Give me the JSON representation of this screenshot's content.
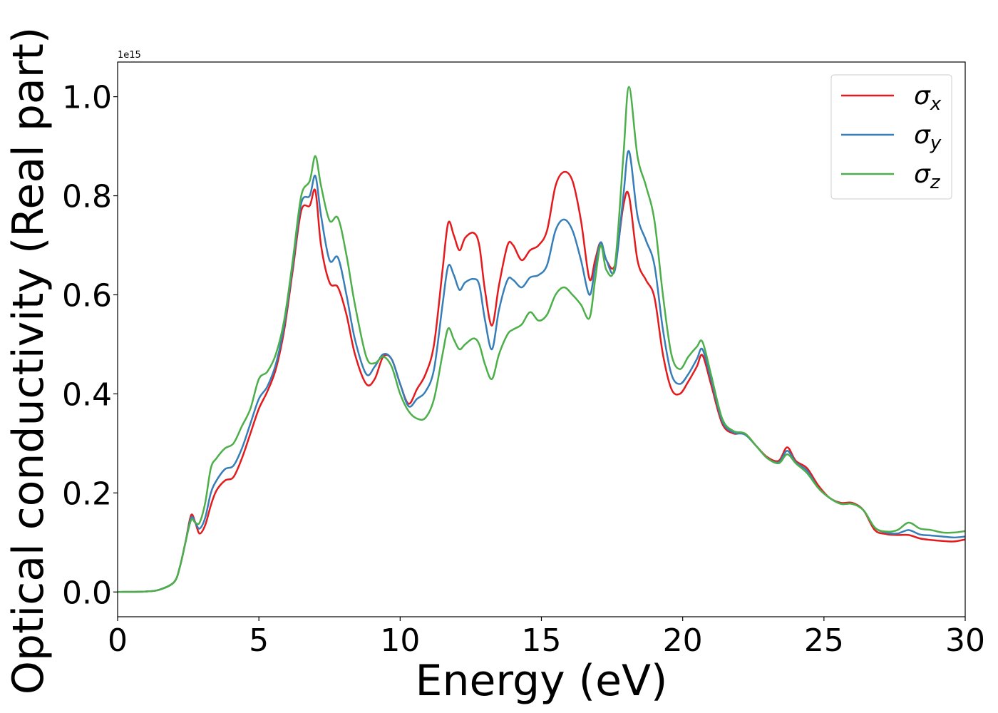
{
  "chart_data": {
    "type": "line",
    "xlabel": "Energy (eV)",
    "ylabel": "Optical conductivity (Real part)",
    "offset_text": "1e15",
    "xlim": [
      0,
      30
    ],
    "ylim": [
      -0.05,
      1.07
    ],
    "xticks": [
      0,
      5,
      10,
      15,
      20,
      25,
      30
    ],
    "xtick_labels": [
      "0",
      "5",
      "10",
      "15",
      "20",
      "25",
      "30"
    ],
    "yticks": [
      0.0,
      0.2,
      0.4,
      0.6,
      0.8,
      1.0
    ],
    "ytick_labels": [
      "0.0",
      "0.2",
      "0.4",
      "0.6",
      "0.8",
      "1.0"
    ],
    "grid": false,
    "legend_position": "top-right",
    "series": [
      {
        "name": "σx",
        "legend_base": "σ",
        "legend_sub": "x",
        "color": "#e41a1c",
        "points": [
          [
            0,
            0
          ],
          [
            1,
            0.001
          ],
          [
            1.5,
            0.005
          ],
          [
            2,
            0.02
          ],
          [
            2.2,
            0.05
          ],
          [
            2.4,
            0.1
          ],
          [
            2.6,
            0.155
          ],
          [
            2.75,
            0.14
          ],
          [
            2.9,
            0.118
          ],
          [
            3.1,
            0.135
          ],
          [
            3.3,
            0.175
          ],
          [
            3.5,
            0.205
          ],
          [
            3.8,
            0.225
          ],
          [
            4.1,
            0.232
          ],
          [
            4.4,
            0.27
          ],
          [
            4.7,
            0.32
          ],
          [
            5.0,
            0.37
          ],
          [
            5.3,
            0.405
          ],
          [
            5.6,
            0.45
          ],
          [
            5.9,
            0.53
          ],
          [
            6.2,
            0.65
          ],
          [
            6.5,
            0.77
          ],
          [
            6.8,
            0.78
          ],
          [
            7.0,
            0.81
          ],
          [
            7.2,
            0.7
          ],
          [
            7.5,
            0.625
          ],
          [
            7.8,
            0.615
          ],
          [
            8.1,
            0.56
          ],
          [
            8.4,
            0.48
          ],
          [
            8.8,
            0.42
          ],
          [
            9.1,
            0.43
          ],
          [
            9.4,
            0.475
          ],
          [
            9.7,
            0.47
          ],
          [
            10.0,
            0.42
          ],
          [
            10.3,
            0.38
          ],
          [
            10.6,
            0.41
          ],
          [
            10.9,
            0.44
          ],
          [
            11.2,
            0.5
          ],
          [
            11.5,
            0.65
          ],
          [
            11.7,
            0.745
          ],
          [
            11.9,
            0.72
          ],
          [
            12.1,
            0.69
          ],
          [
            12.3,
            0.715
          ],
          [
            12.6,
            0.725
          ],
          [
            12.8,
            0.7
          ],
          [
            13.0,
            0.61
          ],
          [
            13.25,
            0.538
          ],
          [
            13.5,
            0.62
          ],
          [
            13.8,
            0.7
          ],
          [
            14.0,
            0.7
          ],
          [
            14.3,
            0.67
          ],
          [
            14.6,
            0.69
          ],
          [
            14.9,
            0.7
          ],
          [
            15.2,
            0.73
          ],
          [
            15.5,
            0.82
          ],
          [
            15.8,
            0.848
          ],
          [
            16.1,
            0.83
          ],
          [
            16.4,
            0.75
          ],
          [
            16.7,
            0.632
          ],
          [
            16.9,
            0.67
          ],
          [
            17.1,
            0.706
          ],
          [
            17.3,
            0.67
          ],
          [
            17.6,
            0.66
          ],
          [
            17.9,
            0.78
          ],
          [
            18.1,
            0.8
          ],
          [
            18.4,
            0.67
          ],
          [
            18.7,
            0.63
          ],
          [
            19.0,
            0.595
          ],
          [
            19.3,
            0.48
          ],
          [
            19.6,
            0.41
          ],
          [
            19.9,
            0.4
          ],
          [
            20.2,
            0.425
          ],
          [
            20.5,
            0.455
          ],
          [
            20.7,
            0.478
          ],
          [
            21.0,
            0.42
          ],
          [
            21.4,
            0.34
          ],
          [
            21.8,
            0.32
          ],
          [
            22.2,
            0.32
          ],
          [
            22.6,
            0.295
          ],
          [
            23.0,
            0.272
          ],
          [
            23.4,
            0.265
          ],
          [
            23.7,
            0.292
          ],
          [
            24.0,
            0.265
          ],
          [
            24.4,
            0.25
          ],
          [
            24.8,
            0.215
          ],
          [
            25.2,
            0.19
          ],
          [
            25.6,
            0.18
          ],
          [
            26.0,
            0.18
          ],
          [
            26.4,
            0.165
          ],
          [
            26.8,
            0.125
          ],
          [
            27.2,
            0.117
          ],
          [
            27.6,
            0.115
          ],
          [
            28.0,
            0.115
          ],
          [
            28.4,
            0.108
          ],
          [
            28.8,
            0.105
          ],
          [
            29.2,
            0.103
          ],
          [
            29.6,
            0.102
          ],
          [
            30,
            0.106
          ]
        ]
      },
      {
        "name": "σy",
        "legend_base": "σ",
        "legend_sub": "y",
        "color": "#377eb8",
        "points": [
          [
            0,
            0
          ],
          [
            1,
            0.001
          ],
          [
            1.5,
            0.005
          ],
          [
            2,
            0.02
          ],
          [
            2.2,
            0.05
          ],
          [
            2.4,
            0.1
          ],
          [
            2.6,
            0.15
          ],
          [
            2.75,
            0.14
          ],
          [
            2.9,
            0.128
          ],
          [
            3.1,
            0.15
          ],
          [
            3.3,
            0.2
          ],
          [
            3.5,
            0.225
          ],
          [
            3.8,
            0.248
          ],
          [
            4.1,
            0.255
          ],
          [
            4.4,
            0.29
          ],
          [
            4.7,
            0.34
          ],
          [
            5.0,
            0.39
          ],
          [
            5.3,
            0.415
          ],
          [
            5.6,
            0.46
          ],
          [
            5.9,
            0.54
          ],
          [
            6.2,
            0.66
          ],
          [
            6.5,
            0.785
          ],
          [
            6.8,
            0.8
          ],
          [
            7.0,
            0.84
          ],
          [
            7.2,
            0.76
          ],
          [
            7.5,
            0.67
          ],
          [
            7.8,
            0.675
          ],
          [
            8.1,
            0.6
          ],
          [
            8.4,
            0.51
          ],
          [
            8.8,
            0.44
          ],
          [
            9.1,
            0.455
          ],
          [
            9.4,
            0.48
          ],
          [
            9.7,
            0.47
          ],
          [
            10.0,
            0.42
          ],
          [
            10.3,
            0.375
          ],
          [
            10.6,
            0.39
          ],
          [
            10.9,
            0.405
          ],
          [
            11.2,
            0.45
          ],
          [
            11.5,
            0.58
          ],
          [
            11.7,
            0.658
          ],
          [
            11.9,
            0.64
          ],
          [
            12.1,
            0.61
          ],
          [
            12.3,
            0.625
          ],
          [
            12.6,
            0.632
          ],
          [
            12.8,
            0.62
          ],
          [
            13.0,
            0.55
          ],
          [
            13.25,
            0.49
          ],
          [
            13.5,
            0.57
          ],
          [
            13.8,
            0.63
          ],
          [
            14.0,
            0.63
          ],
          [
            14.3,
            0.615
          ],
          [
            14.6,
            0.635
          ],
          [
            14.9,
            0.64
          ],
          [
            15.2,
            0.66
          ],
          [
            15.5,
            0.73
          ],
          [
            15.8,
            0.752
          ],
          [
            16.1,
            0.73
          ],
          [
            16.4,
            0.67
          ],
          [
            16.7,
            0.6
          ],
          [
            16.9,
            0.655
          ],
          [
            17.1,
            0.706
          ],
          [
            17.3,
            0.67
          ],
          [
            17.6,
            0.65
          ],
          [
            17.9,
            0.8
          ],
          [
            18.1,
            0.89
          ],
          [
            18.4,
            0.76
          ],
          [
            18.7,
            0.71
          ],
          [
            19.0,
            0.66
          ],
          [
            19.3,
            0.53
          ],
          [
            19.6,
            0.44
          ],
          [
            19.9,
            0.42
          ],
          [
            20.2,
            0.44
          ],
          [
            20.5,
            0.47
          ],
          [
            20.7,
            0.49
          ],
          [
            21.0,
            0.43
          ],
          [
            21.4,
            0.345
          ],
          [
            21.8,
            0.322
          ],
          [
            22.2,
            0.318
          ],
          [
            22.6,
            0.295
          ],
          [
            23.0,
            0.27
          ],
          [
            23.4,
            0.262
          ],
          [
            23.7,
            0.285
          ],
          [
            24.0,
            0.262
          ],
          [
            24.4,
            0.245
          ],
          [
            24.8,
            0.21
          ],
          [
            25.2,
            0.19
          ],
          [
            25.6,
            0.178
          ],
          [
            26.0,
            0.178
          ],
          [
            26.4,
            0.165
          ],
          [
            26.8,
            0.13
          ],
          [
            27.2,
            0.12
          ],
          [
            27.6,
            0.118
          ],
          [
            28.0,
            0.125
          ],
          [
            28.4,
            0.116
          ],
          [
            28.8,
            0.114
          ],
          [
            29.2,
            0.112
          ],
          [
            29.6,
            0.11
          ],
          [
            30,
            0.112
          ]
        ]
      },
      {
        "name": "σz",
        "legend_base": "σ",
        "legend_sub": "z",
        "color": "#4daf4a",
        "points": [
          [
            0,
            0
          ],
          [
            1,
            0.001
          ],
          [
            1.5,
            0.005
          ],
          [
            2,
            0.02
          ],
          [
            2.2,
            0.05
          ],
          [
            2.4,
            0.1
          ],
          [
            2.6,
            0.145
          ],
          [
            2.75,
            0.14
          ],
          [
            2.9,
            0.14
          ],
          [
            3.1,
            0.18
          ],
          [
            3.3,
            0.25
          ],
          [
            3.5,
            0.27
          ],
          [
            3.8,
            0.29
          ],
          [
            4.1,
            0.3
          ],
          [
            4.4,
            0.335
          ],
          [
            4.7,
            0.37
          ],
          [
            5.0,
            0.43
          ],
          [
            5.3,
            0.445
          ],
          [
            5.6,
            0.48
          ],
          [
            5.9,
            0.55
          ],
          [
            6.2,
            0.67
          ],
          [
            6.5,
            0.8
          ],
          [
            6.8,
            0.83
          ],
          [
            7.0,
            0.88
          ],
          [
            7.2,
            0.82
          ],
          [
            7.5,
            0.75
          ],
          [
            7.8,
            0.755
          ],
          [
            8.1,
            0.68
          ],
          [
            8.4,
            0.58
          ],
          [
            8.8,
            0.475
          ],
          [
            9.1,
            0.462
          ],
          [
            9.4,
            0.475
          ],
          [
            9.7,
            0.455
          ],
          [
            10.0,
            0.4
          ],
          [
            10.3,
            0.365
          ],
          [
            10.6,
            0.35
          ],
          [
            10.9,
            0.352
          ],
          [
            11.2,
            0.39
          ],
          [
            11.5,
            0.48
          ],
          [
            11.7,
            0.532
          ],
          [
            11.9,
            0.51
          ],
          [
            12.1,
            0.49
          ],
          [
            12.3,
            0.5
          ],
          [
            12.6,
            0.512
          ],
          [
            12.8,
            0.5
          ],
          [
            13.0,
            0.46
          ],
          [
            13.25,
            0.43
          ],
          [
            13.5,
            0.48
          ],
          [
            13.8,
            0.52
          ],
          [
            14.0,
            0.53
          ],
          [
            14.3,
            0.54
          ],
          [
            14.6,
            0.565
          ],
          [
            14.9,
            0.548
          ],
          [
            15.2,
            0.56
          ],
          [
            15.5,
            0.6
          ],
          [
            15.8,
            0.615
          ],
          [
            16.1,
            0.6
          ],
          [
            16.4,
            0.58
          ],
          [
            16.7,
            0.553
          ],
          [
            16.9,
            0.63
          ],
          [
            17.1,
            0.7
          ],
          [
            17.3,
            0.65
          ],
          [
            17.6,
            0.66
          ],
          [
            17.9,
            0.88
          ],
          [
            18.1,
            1.02
          ],
          [
            18.4,
            0.88
          ],
          [
            18.7,
            0.82
          ],
          [
            19.0,
            0.75
          ],
          [
            19.3,
            0.6
          ],
          [
            19.6,
            0.48
          ],
          [
            19.9,
            0.45
          ],
          [
            20.2,
            0.475
          ],
          [
            20.5,
            0.495
          ],
          [
            20.7,
            0.505
          ],
          [
            21.0,
            0.44
          ],
          [
            21.4,
            0.35
          ],
          [
            21.8,
            0.325
          ],
          [
            22.2,
            0.32
          ],
          [
            22.6,
            0.295
          ],
          [
            23.0,
            0.27
          ],
          [
            23.4,
            0.26
          ],
          [
            23.7,
            0.278
          ],
          [
            24.0,
            0.26
          ],
          [
            24.4,
            0.24
          ],
          [
            24.8,
            0.21
          ],
          [
            25.2,
            0.19
          ],
          [
            25.6,
            0.178
          ],
          [
            26.0,
            0.178
          ],
          [
            26.4,
            0.165
          ],
          [
            26.8,
            0.13
          ],
          [
            27.2,
            0.122
          ],
          [
            27.6,
            0.125
          ],
          [
            28.0,
            0.14
          ],
          [
            28.4,
            0.128
          ],
          [
            28.8,
            0.125
          ],
          [
            29.2,
            0.12
          ],
          [
            29.6,
            0.12
          ],
          [
            30,
            0.123
          ]
        ]
      }
    ]
  }
}
